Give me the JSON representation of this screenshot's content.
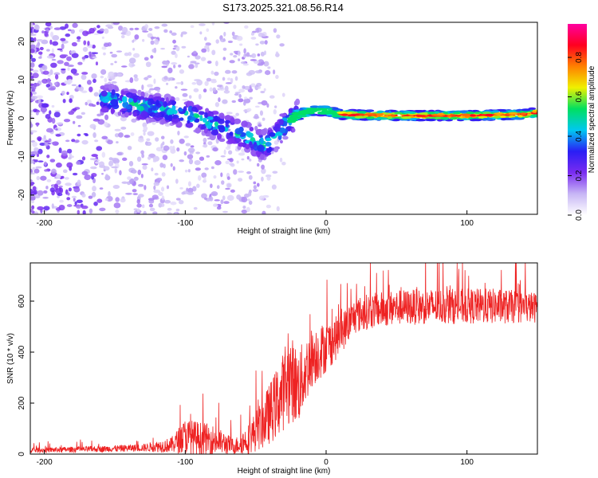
{
  "figure_title": "S173.2025.321.08.56.R14",
  "chart_data": [
    {
      "type": "heatmap",
      "xlabel": "Height of straight line (km)",
      "ylabel": "Frequency (Hz)",
      "xlim": [
        -210,
        150
      ],
      "ylim": [
        -25,
        25
      ],
      "x_ticks": [
        -200,
        -100,
        0,
        100
      ],
      "y_ticks": [
        -20,
        -10,
        0,
        10,
        20
      ],
      "colorbar": {
        "label": "Normalized spectral amplitude",
        "range": [
          0,
          0.97
        ],
        "ticks": [
          0.0,
          0.2,
          0.4,
          0.6,
          0.8
        ],
        "colormap": [
          "#ffffff",
          "#c7b6f5",
          "#7a2cf0",
          "#2a1ef5",
          "#00c8f0",
          "#00e060",
          "#f0f000",
          "#ff8000",
          "#ff0020",
          "#ff00a0"
        ]
      },
      "ridge": {
        "description_points_x": [
          -155,
          -130,
          -110,
          -90,
          -70,
          -55,
          -45,
          -38,
          -30,
          -20,
          -10,
          0,
          10,
          30,
          60,
          100,
          140,
          150
        ],
        "frequency_hz": [
          5,
          3,
          2,
          0,
          -3,
          -5,
          -7,
          -6,
          -2,
          1,
          2,
          2,
          1,
          0.8,
          0.7,
          0.7,
          1,
          1.5
        ]
      },
      "noise_region_x": [
        -210,
        -160
      ]
    },
    {
      "type": "line",
      "xlabel": "Height of straight line (km)",
      "ylabel": "SNR (10 * v/v)",
      "xlim": [
        -210,
        150
      ],
      "ylim": [
        0,
        750
      ],
      "x_ticks": [
        -200,
        -100,
        0,
        100
      ],
      "y_ticks": [
        0,
        200,
        400,
        600
      ],
      "series": [
        {
          "color": "#ee2222",
          "trend_x": [
            -210,
            -160,
            -130,
            -110,
            -100,
            -80,
            -65,
            -55,
            -45,
            -35,
            -25,
            -20,
            -10,
            0,
            10,
            20,
            30,
            50,
            80,
            120,
            150
          ],
          "trend_y": [
            15,
            20,
            25,
            35,
            70,
            55,
            30,
            60,
            120,
            200,
            300,
            260,
            380,
            420,
            470,
            540,
            560,
            575,
            580,
            580,
            575
          ],
          "noise_amp": [
            10,
            12,
            15,
            30,
            70,
            60,
            30,
            60,
            100,
            140,
            170,
            150,
            120,
            100,
            80,
            70,
            70,
            70,
            70,
            70,
            60
          ]
        }
      ]
    }
  ]
}
